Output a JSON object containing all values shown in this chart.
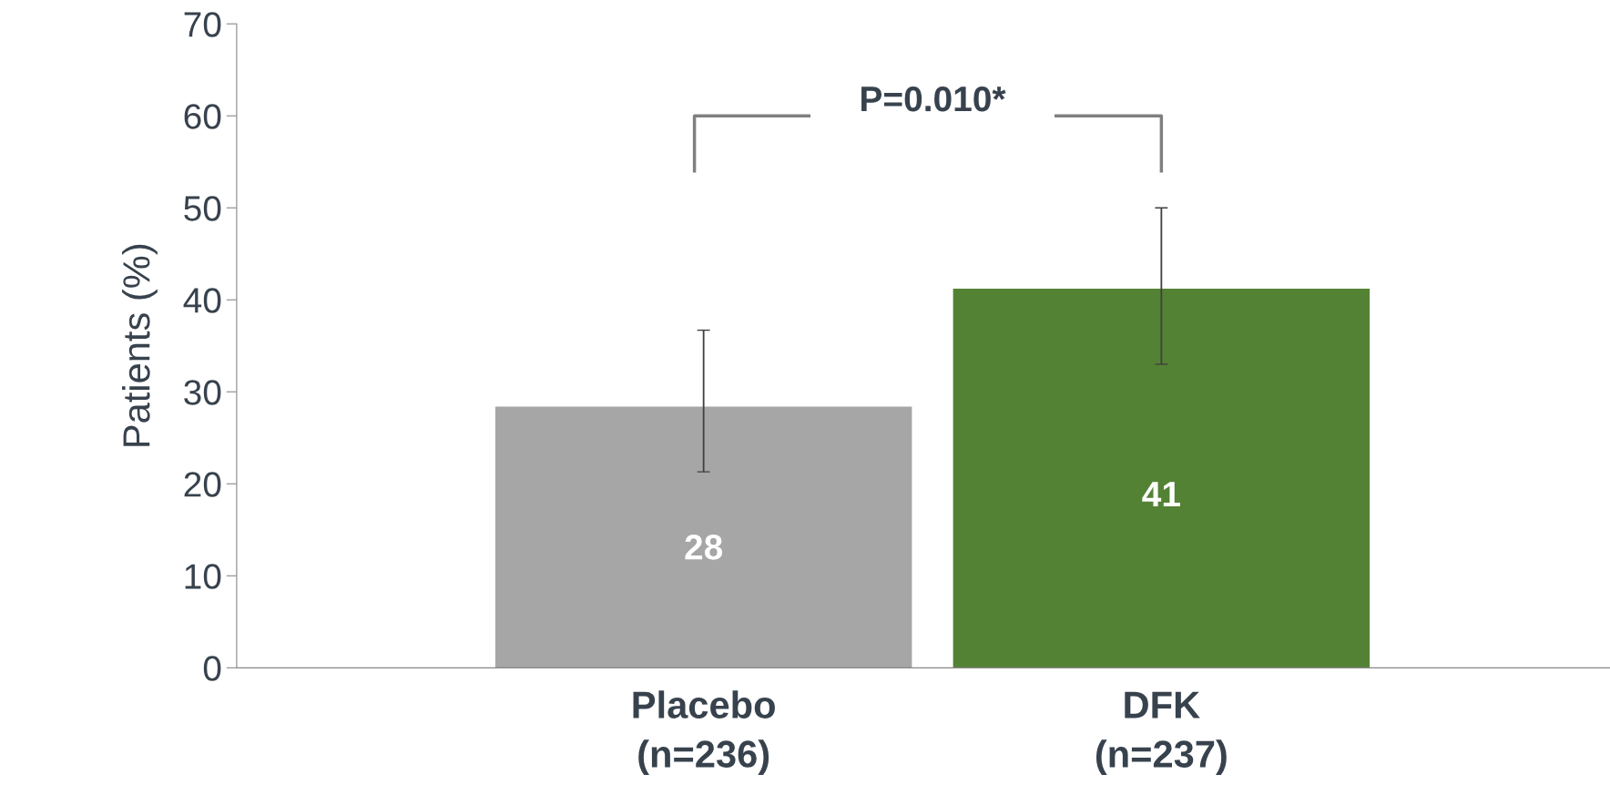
{
  "chart_data": {
    "type": "bar",
    "ylabel": "Patients (%)",
    "categories": [
      "Placebo\n(n=236)",
      "DFK\n(n=237)"
    ],
    "values": [
      28.4,
      41.2
    ],
    "colors": [
      "#a6a6a6",
      "#538234"
    ],
    "value_labels": [
      "28",
      "41"
    ],
    "errors": [
      [
        21.3,
        36.7
      ],
      [
        33.0,
        50.0
      ]
    ],
    "ylim": [
      0,
      70
    ],
    "yticks": [
      0,
      10,
      20,
      30,
      40,
      50,
      60,
      70
    ],
    "annotations": [
      "P=0.010*"
    ],
    "grid": false,
    "legend": false
  }
}
